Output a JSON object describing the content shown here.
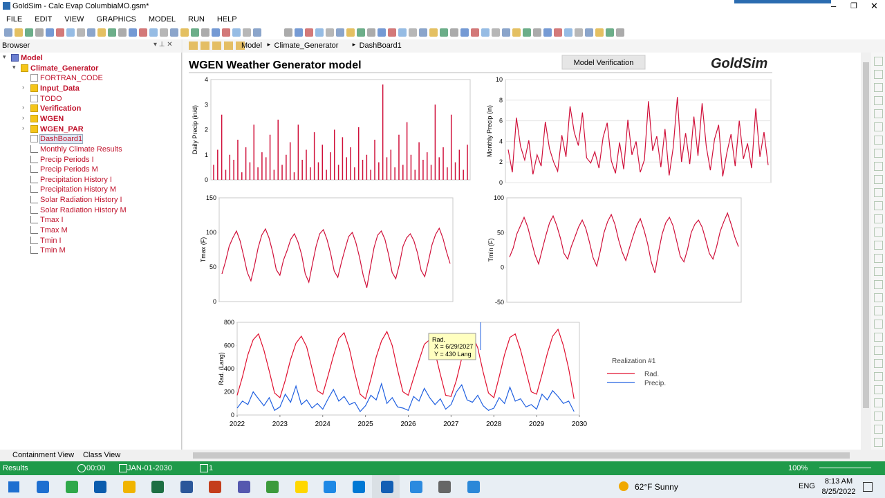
{
  "window": {
    "title": "GoldSim  - Calc Evap ColumbiaMO.gsm*"
  },
  "menu": [
    "FILE",
    "EDIT",
    "VIEW",
    "GRAPHICS",
    "MODEL",
    "RUN",
    "HELP"
  ],
  "browser": {
    "title": "Browser",
    "tree": [
      {
        "label": "Model",
        "level": 0,
        "bold": true
      },
      {
        "label": "Climate_Generator",
        "level": 1,
        "bold": true
      },
      {
        "label": "FORTRAN_CODE",
        "level": 2,
        "bold": false
      },
      {
        "label": "Input_Data",
        "level": 2,
        "bold": true
      },
      {
        "label": "TODO",
        "level": 2,
        "bold": false
      },
      {
        "label": "Verification",
        "level": 2,
        "bold": true
      },
      {
        "label": "WGEN",
        "level": 2,
        "bold": true
      },
      {
        "label": "WGEN_PAR",
        "level": 2,
        "bold": true
      },
      {
        "label": "DashBoard1",
        "level": 2,
        "bold": false
      },
      {
        "label": "Monthly Climate Results",
        "level": 2,
        "bold": false
      },
      {
        "label": "Precip Periods I",
        "level": 2,
        "bold": false
      },
      {
        "label": "Precip Periods M",
        "level": 2,
        "bold": false
      },
      {
        "label": "Precipitation History I",
        "level": 2,
        "bold": false
      },
      {
        "label": "Precipitation History M",
        "level": 2,
        "bold": false
      },
      {
        "label": "Solar Radiation History I",
        "level": 2,
        "bold": false
      },
      {
        "label": "Solar Radiation History M",
        "level": 2,
        "bold": false
      },
      {
        "label": "Tmax I",
        "level": 2,
        "bold": false
      },
      {
        "label": "Tmax M",
        "level": 2,
        "bold": false
      },
      {
        "label": "Tmin I",
        "level": 2,
        "bold": false
      },
      {
        "label": "Tmin M",
        "level": 2,
        "bold": false
      }
    ],
    "tabs": [
      "Containment View",
      "Class View"
    ]
  },
  "breadcrumb": [
    "Model",
    "Climate_Generator",
    "DashBoard1"
  ],
  "dashboard": {
    "title": "WGEN Weather Generator model",
    "button": "Model Verification",
    "logo": "GoldSim",
    "charts": [
      {
        "type": "bar",
        "ylabel": "Daily Precip (in/d)",
        "color": "#d0103a",
        "ylim": [
          0,
          4
        ],
        "yticks": [
          0,
          1,
          2,
          3,
          4
        ],
        "values": [
          0.6,
          1.2,
          2.6,
          0.4,
          1.0,
          0.8,
          1.6,
          0.3,
          1.3,
          0.7,
          2.2,
          0.5,
          1.1,
          0.9,
          1.8,
          0.4,
          2.4,
          0.6,
          1.0,
          1.5,
          0.3,
          2.2,
          0.8,
          1.2,
          0.5,
          1.9,
          0.7,
          1.4,
          0.4,
          1.1,
          2.0,
          0.6,
          1.7,
          0.9,
          1.3,
          0.5,
          2.1,
          0.8,
          1.0,
          0.4,
          1.6,
          0.7,
          3.8,
          0.9,
          1.2,
          0.5,
          1.8,
          0.6,
          2.3,
          1.0,
          0.4,
          1.5,
          0.8,
          1.1,
          0.6,
          3.0,
          0.9,
          1.3,
          0.5,
          2.6,
          0.7,
          1.2,
          0.4,
          1.4
        ]
      },
      {
        "type": "line",
        "ylabel": "Monthly Precip (in)",
        "color": "#d0103a",
        "ylim": [
          0,
          10
        ],
        "yticks": [
          0,
          2,
          4,
          6,
          8,
          10
        ],
        "grid": true,
        "values": [
          3.2,
          1.0,
          6.3,
          3.5,
          2.2,
          4.1,
          0.8,
          2.7,
          1.6,
          5.9,
          3.3,
          2.0,
          1.1,
          4.6,
          2.5,
          7.4,
          4.9,
          3.6,
          6.8,
          2.4,
          1.9,
          3.0,
          1.4,
          4.4,
          5.8,
          2.1,
          0.9,
          3.9,
          1.3,
          6.1,
          2.7,
          4.0,
          1.0,
          2.2,
          7.9,
          3.1,
          4.5,
          1.5,
          5.2,
          0.7,
          3.4,
          8.3,
          2.0,
          4.8,
          1.8,
          6.4,
          2.6,
          7.7,
          3.5,
          1.2,
          4.2,
          5.6,
          0.6,
          2.9,
          4.7,
          1.6,
          6.0,
          2.3,
          3.8,
          1.4,
          7.2,
          2.5,
          4.9,
          1.7
        ]
      },
      {
        "type": "line",
        "ylabel": "Tmax (F)",
        "color": "#d0103a",
        "ylim": [
          0,
          150
        ],
        "yticks": [
          0,
          50,
          100,
          150
        ],
        "values": [
          40,
          58,
          80,
          92,
          102,
          88,
          66,
          42,
          30,
          52,
          78,
          96,
          105,
          92,
          72,
          46,
          38,
          60,
          74,
          90,
          98,
          86,
          68,
          40,
          28,
          55,
          80,
          98,
          104,
          90,
          70,
          44,
          35,
          57,
          76,
          94,
          100,
          85,
          64,
          38,
          20,
          50,
          78,
          96,
          102,
          90,
          68,
          42,
          33,
          54,
          80,
          92,
          98,
          88,
          70,
          45,
          36,
          58,
          82,
          97,
          106,
          92,
          72,
          55
        ]
      },
      {
        "type": "line",
        "ylabel": "Tmin (F)",
        "color": "#d0103a",
        "ylim": [
          -50,
          100
        ],
        "yticks": [
          -50,
          0,
          50,
          100
        ],
        "values": [
          15,
          28,
          48,
          60,
          72,
          58,
          38,
          18,
          5,
          26,
          46,
          64,
          74,
          60,
          42,
          20,
          12,
          30,
          44,
          58,
          68,
          56,
          36,
          14,
          2,
          24,
          50,
          66,
          76,
          62,
          40,
          22,
          10,
          28,
          45,
          60,
          70,
          54,
          34,
          8,
          -8,
          22,
          48,
          64,
          72,
          60,
          38,
          16,
          8,
          26,
          50,
          62,
          68,
          58,
          40,
          20,
          12,
          30,
          52,
          66,
          78,
          62,
          44,
          30
        ]
      },
      {
        "type": "line",
        "ylabel": "Rad. (Lang)",
        "xlim": [
          2022,
          2030
        ],
        "xticks": [
          2022,
          2023,
          2024,
          2025,
          2026,
          2027,
          2028,
          2029,
          2030
        ],
        "ylim": [
          0,
          800
        ],
        "yticks": [
          0,
          200,
          400,
          600,
          800
        ],
        "x": [
          2022,
          2022.125,
          2022.25,
          2022.375,
          2022.5,
          2022.625,
          2022.75,
          2022.875,
          2023,
          2023.125,
          2023.25,
          2023.375,
          2023.5,
          2023.625,
          2023.75,
          2023.875,
          2024,
          2024.125,
          2024.25,
          2024.375,
          2024.5,
          2024.625,
          2024.75,
          2024.875,
          2025,
          2025.125,
          2025.25,
          2025.375,
          2025.5,
          2025.625,
          2025.75,
          2025.875,
          2026,
          2026.125,
          2026.25,
          2026.375,
          2026.5,
          2026.625,
          2026.75,
          2026.875,
          2027,
          2027.125,
          2027.25,
          2027.375,
          2027.5,
          2027.625,
          2027.75,
          2027.875,
          2028,
          2028.125,
          2028.25,
          2028.375,
          2028.5,
          2028.625,
          2028.75,
          2028.875,
          2029,
          2029.125,
          2029.25,
          2029.375,
          2029.5,
          2029.625,
          2029.75,
          2029.875
        ],
        "series": [
          {
            "name": "Rad.",
            "color": "#e0102f",
            "values": [
              170,
              330,
              520,
              650,
              700,
              560,
              380,
              190,
              150,
              300,
              480,
              620,
              680,
              590,
              400,
              210,
              180,
              340,
              510,
              660,
              710,
              570,
              360,
              180,
              140,
              310,
              500,
              640,
              720,
              600,
              390,
              200,
              170,
              320,
              470,
              610,
              650,
              540,
              350,
              170,
              160,
              300,
              490,
              630,
              690,
              580,
              370,
              190,
              150,
              330,
              520,
              670,
              700,
              560,
              380,
              200,
              180,
              350,
              530,
              680,
              740,
              600,
              400,
              140
            ]
          },
          {
            "name": "Precip.",
            "color": "#2060e0",
            "values": [
              60,
              120,
              90,
              200,
              140,
              80,
              150,
              40,
              70,
              180,
              110,
              250,
              90,
              130,
              60,
              100,
              50,
              140,
              220,
              120,
              160,
              90,
              110,
              30,
              80,
              170,
              130,
              270,
              100,
              150,
              70,
              60,
              40,
              160,
              120,
              230,
              150,
              90,
              140,
              50,
              90,
              200,
              260,
              130,
              110,
              170,
              80,
              40,
              60,
              150,
              100,
              240,
              120,
              140,
              70,
              90,
              50,
              180,
              130,
              210,
              160,
              100,
              120,
              30
            ]
          }
        ]
      }
    ],
    "legend": {
      "title": "Realization #1"
    },
    "tooltip": {
      "title": "Rad.",
      "x_text": "X = 6/29/2027",
      "y_text": "Y = 430 Lang"
    }
  },
  "status": {
    "mode": "Results",
    "time": "00:00",
    "date": "JAN-01-2030",
    "realization": "1",
    "zoom": "100%"
  },
  "taskbar": {
    "weather": "62°F  Sunny",
    "language": "ENG",
    "time": "8:13 AM",
    "date": "8/25/2022"
  }
}
